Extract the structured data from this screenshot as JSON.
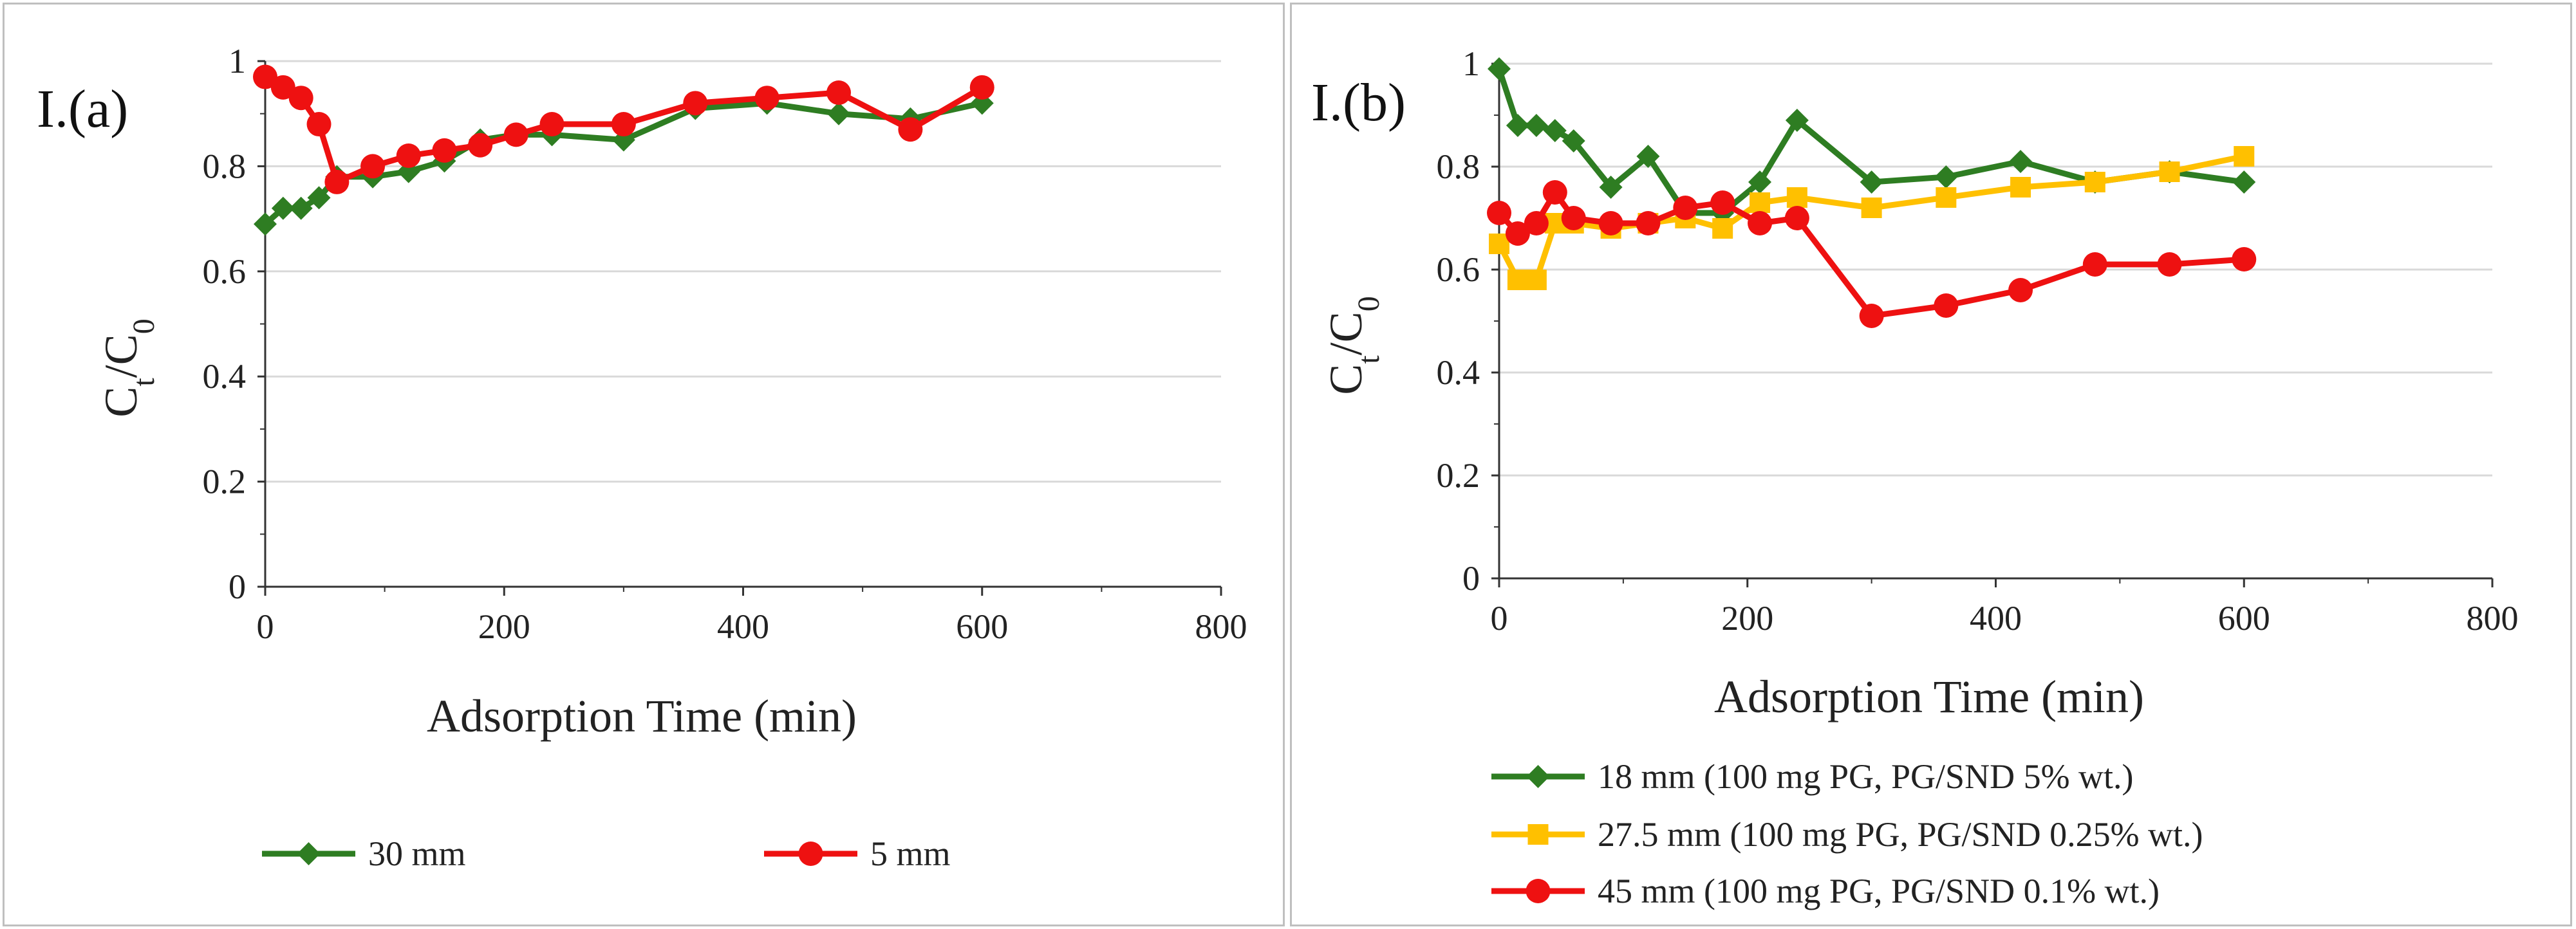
{
  "chart_data": [
    {
      "id": "a",
      "type": "line",
      "panel_label": "I.(a)",
      "xlabel": "Adsorption Time (min)",
      "ylabel_main": "C",
      "ylabel_sub1": "t",
      "ylabel_slash": "/C",
      "ylabel_sub2": "0",
      "xlim": [
        0,
        800
      ],
      "ylim": [
        0,
        1
      ],
      "xticks": [
        0,
        200,
        400,
        600,
        800
      ],
      "xtick_labels": [
        "0",
        "200",
        "400",
        "600",
        "800"
      ],
      "yticks": [
        0,
        0.2,
        0.4,
        0.6,
        0.8,
        1
      ],
      "ytick_labels": [
        "0",
        "0.2",
        "0.4",
        "0.6",
        "0.8",
        "1"
      ],
      "grid": true,
      "legend_position": "bottom",
      "series": [
        {
          "name": "30 mm",
          "color": "#2e7d22",
          "marker": "diamond",
          "x": [
            0,
            15,
            30,
            45,
            60,
            90,
            120,
            150,
            180,
            210,
            240,
            300,
            360,
            420,
            480,
            540,
            600
          ],
          "y": [
            0.69,
            0.72,
            0.72,
            0.74,
            0.78,
            0.78,
            0.79,
            0.81,
            0.85,
            0.86,
            0.86,
            0.85,
            0.91,
            0.92,
            0.9,
            0.89,
            0.92
          ]
        },
        {
          "name": "5 mm",
          "color": "#ee1111",
          "marker": "circle",
          "x": [
            0,
            15,
            30,
            45,
            60,
            90,
            120,
            150,
            180,
            210,
            240,
            300,
            360,
            420,
            480,
            540,
            600
          ],
          "y": [
            0.97,
            0.95,
            0.93,
            0.88,
            0.77,
            0.8,
            0.82,
            0.83,
            0.84,
            0.86,
            0.88,
            0.88,
            0.92,
            0.93,
            0.94,
            0.87,
            0.95
          ]
        }
      ]
    },
    {
      "id": "b",
      "type": "line",
      "panel_label": "I.(b)",
      "xlabel": "Adsorption Time (min)",
      "ylabel_main": "C",
      "ylabel_sub1": "t",
      "ylabel_slash": "/C",
      "ylabel_sub2": "0",
      "xlim": [
        0,
        800
      ],
      "ylim": [
        0,
        1
      ],
      "xticks": [
        0,
        200,
        400,
        600,
        800
      ],
      "xtick_labels": [
        "0",
        "200",
        "400",
        "600",
        "800"
      ],
      "yticks": [
        0,
        0.2,
        0.4,
        0.6,
        0.8,
        1
      ],
      "ytick_labels": [
        "0",
        "0.2",
        "0.4",
        "0.6",
        "0.8",
        "1"
      ],
      "grid": true,
      "legend_position": "bottom",
      "series": [
        {
          "name": "18 mm (100 mg PG, PG/SND 5% wt.)",
          "color": "#2e7d22",
          "marker": "diamond",
          "x": [
            0,
            15,
            30,
            45,
            60,
            90,
            120,
            150,
            180,
            210,
            240,
            300,
            360,
            420,
            480,
            540,
            600
          ],
          "y": [
            0.99,
            0.88,
            0.88,
            0.87,
            0.85,
            0.76,
            0.82,
            0.71,
            0.71,
            0.77,
            0.89,
            0.77,
            0.78,
            0.81,
            0.77,
            0.79,
            0.77
          ]
        },
        {
          "name": "27.5 mm (100 mg PG, PG/SND 0.25% wt.)",
          "color": "#ffc000",
          "marker": "square",
          "x": [
            0,
            15,
            30,
            45,
            60,
            90,
            120,
            150,
            180,
            210,
            240,
            300,
            360,
            420,
            480,
            540,
            600
          ],
          "y": [
            0.65,
            0.58,
            0.58,
            0.69,
            0.69,
            0.68,
            0.69,
            0.7,
            0.68,
            0.73,
            0.74,
            0.72,
            0.74,
            0.76,
            0.77,
            0.79,
            0.82
          ]
        },
        {
          "name": "45 mm (100 mg PG, PG/SND 0.1% wt.)",
          "color": "#ee1111",
          "marker": "circle",
          "x": [
            0,
            15,
            30,
            45,
            60,
            90,
            120,
            150,
            180,
            210,
            240,
            300,
            360,
            420,
            480,
            540,
            600
          ],
          "y": [
            0.71,
            0.67,
            0.69,
            0.75,
            0.7,
            0.69,
            0.69,
            0.72,
            0.73,
            0.69,
            0.7,
            0.51,
            0.53,
            0.56,
            0.61,
            0.61,
            0.62
          ]
        }
      ]
    }
  ]
}
